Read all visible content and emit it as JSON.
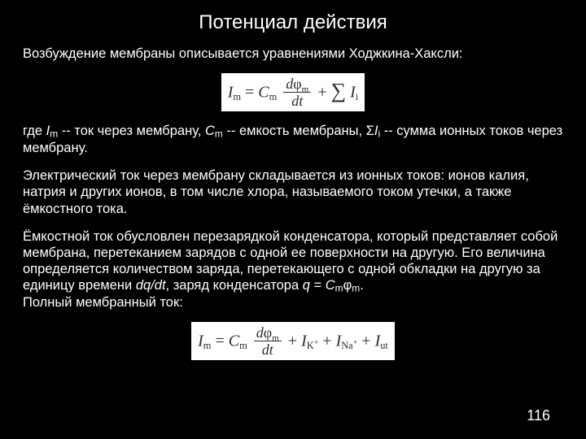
{
  "colors": {
    "background": "#000000",
    "text": "#ffffff",
    "formula_bg": "#ffffff",
    "formula_text": "#2d2d2d"
  },
  "title": "Потенциал действия",
  "p1": "Возбуждение мембраны описывается уравнениями Ходжкина-Хаксли:",
  "formula1": {
    "lhs_sym": "I",
    "lhs_sub": "m",
    "rhs1_sym": "C",
    "rhs1_sub": "m",
    "frac_num_d": "d",
    "frac_num_phi": "φ",
    "frac_num_sub": "m",
    "frac_den": "dt",
    "sum_sym": "I",
    "sum_sub": "i"
  },
  "p2": {
    "a": "где ",
    "im_sym": "I",
    "im_sub": "m",
    "b": " -- ток через мембрану, ",
    "cm_sym": "C",
    "cm_sub": "m",
    "c": " -- емкость мембраны, Σ",
    "ii_sym": "I",
    "ii_sub": "i",
    "d": " -- сумма ионных токов через мембрану."
  },
  "p3": "Электрический ток через мембрану складывается из ионных токов: ионов калия, натрия и других ионов, в том числе хлора, называемого током утечки, а также ёмкостного тока.",
  "p4": {
    "a": "Ёмкостной ток обусловлен перезарядкой конденсатора, который представляет собой мембрана, перетеканием зарядов с одной ее поверхности на другую. Его величина определяется количеством заряда, перетекающего с одной обкладки на другую за единицу времени ",
    "dqdt": "dq/dt",
    "b": ", заряд конденсатора ",
    "q": "q",
    "c": " = ",
    "cm_sym": "C",
    "cm_sub": "m",
    "phi": "φ",
    "phi_sub": "m",
    "d": ".",
    "e": "Полный мембранный ток:"
  },
  "formula2": {
    "lhs_sym": "I",
    "lhs_sub": "m",
    "rhs1_sym": "C",
    "rhs1_sub": "m",
    "frac_num_d": "d",
    "frac_num_phi": "φ",
    "frac_num_sub": "m",
    "frac_den": "dt",
    "t2_sym": "I",
    "t2_sub": "K",
    "t2_sup": "+",
    "t3_sym": "I",
    "t3_sub": "Na",
    "t3_sup": "+",
    "t4_sym": "I",
    "t4_sub": "ut"
  },
  "pagenum": "116"
}
